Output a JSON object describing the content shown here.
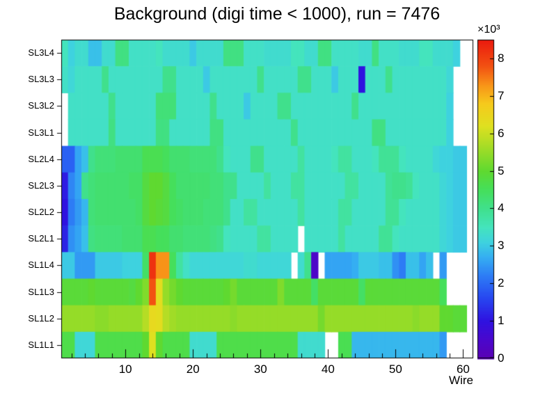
{
  "chart_data": {
    "type": "heatmap",
    "title": "Background (digi time < 1000), run = 7476",
    "xlabel": "Wire",
    "x_ticks": [
      10,
      20,
      30,
      40,
      50,
      60
    ],
    "x_minor_tick_step": 2,
    "n_wires": 61,
    "y_labels": [
      "SL3L4",
      "SL3L3",
      "SL3L2",
      "SL3L1",
      "SL2L4",
      "SL2L3",
      "SL2L2",
      "SL2L1",
      "SL1L4",
      "SL1L3",
      "SL1L2",
      "SL1L1"
    ],
    "colorbar": {
      "multiplier": "×10³",
      "ticks": [
        0,
        1,
        2,
        3,
        4,
        5,
        6,
        7,
        8
      ],
      "zmin": 0,
      "zmax": 8.5,
      "palette_stops": [
        [
          0.0,
          "#5a00b4"
        ],
        [
          0.5,
          "#4a07cd"
        ],
        [
          1.0,
          "#2f12e0"
        ],
        [
          1.6,
          "#2746f0"
        ],
        [
          2.2,
          "#2d7cf5"
        ],
        [
          2.7,
          "#35aef2"
        ],
        [
          3.1,
          "#3ed2df"
        ],
        [
          3.5,
          "#44e4bd"
        ],
        [
          4.0,
          "#40e08c"
        ],
        [
          4.5,
          "#45df5b"
        ],
        [
          5.0,
          "#5fd930"
        ],
        [
          5.6,
          "#a0dc27"
        ],
        [
          6.2,
          "#dfe020"
        ],
        [
          6.8,
          "#f6ca1c"
        ],
        [
          7.3,
          "#f89318"
        ],
        [
          7.8,
          "#f25112"
        ],
        [
          8.5,
          "#eb1a0e"
        ]
      ]
    },
    "rows": [
      {
        "label": "SL3L4",
        "runs": [
          [
            3.5,
            1
          ],
          [
            3.1,
            1
          ],
          [
            3.3,
            2
          ],
          [
            2.9,
            2
          ],
          [
            3.3,
            2
          ],
          [
            4.1,
            2
          ],
          [
            3.4,
            4
          ],
          [
            3.5,
            1
          ],
          [
            3.3,
            4
          ],
          [
            3.0,
            1
          ],
          [
            3.3,
            4
          ],
          [
            4.1,
            3
          ],
          [
            3.4,
            3
          ],
          [
            3.3,
            4
          ],
          [
            3.5,
            2
          ],
          [
            3.3,
            2
          ],
          [
            4.1,
            2
          ],
          [
            3.4,
            4
          ],
          [
            3.3,
            2
          ],
          [
            4.1,
            1
          ],
          [
            3.4,
            3
          ],
          [
            3.3,
            3
          ],
          [
            3.5,
            2
          ],
          [
            3.3,
            3
          ],
          [
            3.1,
            1
          ],
          [
            null,
            2
          ]
        ]
      },
      {
        "label": "SL3L3",
        "runs": [
          [
            3.4,
            1
          ],
          [
            3.2,
            1
          ],
          [
            3.4,
            4
          ],
          [
            4.0,
            1
          ],
          [
            3.4,
            8
          ],
          [
            4.0,
            2
          ],
          [
            3.4,
            4
          ],
          [
            3.0,
            1
          ],
          [
            3.4,
            7
          ],
          [
            4.0,
            1
          ],
          [
            3.4,
            5
          ],
          [
            4.0,
            2
          ],
          [
            3.4,
            3
          ],
          [
            3.0,
            1
          ],
          [
            3.4,
            3
          ],
          [
            1.0,
            1
          ],
          [
            3.4,
            3
          ],
          [
            4.0,
            1
          ],
          [
            3.4,
            8
          ],
          [
            3.2,
            1
          ],
          [
            null,
            3
          ]
        ]
      },
      {
        "label": "SL3L2",
        "runs": [
          [
            null,
            1
          ],
          [
            3.4,
            6
          ],
          [
            4.0,
            1
          ],
          [
            3.4,
            6
          ],
          [
            4.2,
            3
          ],
          [
            3.4,
            5
          ],
          [
            4.0,
            1
          ],
          [
            3.4,
            4
          ],
          [
            3.0,
            1
          ],
          [
            3.4,
            4
          ],
          [
            4.0,
            2
          ],
          [
            3.4,
            9
          ],
          [
            4.0,
            1
          ],
          [
            3.4,
            13
          ],
          [
            3.1,
            1
          ],
          [
            null,
            3
          ]
        ]
      },
      {
        "label": "SL3L1",
        "runs": [
          [
            null,
            1
          ],
          [
            3.4,
            6
          ],
          [
            4.1,
            1
          ],
          [
            3.4,
            6
          ],
          [
            4.1,
            2
          ],
          [
            3.4,
            6
          ],
          [
            4.1,
            2
          ],
          [
            3.4,
            10
          ],
          [
            4.0,
            1
          ],
          [
            3.4,
            11
          ],
          [
            4.1,
            2
          ],
          [
            3.4,
            9
          ],
          [
            3.1,
            1
          ],
          [
            null,
            3
          ]
        ]
      },
      {
        "label": "SL2L4",
        "runs": [
          [
            1.9,
            2
          ],
          [
            2.6,
            1
          ],
          [
            2.9,
            1
          ],
          [
            4.0,
            1
          ],
          [
            4.2,
            3
          ],
          [
            4.3,
            4
          ],
          [
            4.6,
            3
          ],
          [
            4.5,
            1
          ],
          [
            4.3,
            3
          ],
          [
            4.2,
            4
          ],
          [
            4.0,
            1
          ],
          [
            3.5,
            1
          ],
          [
            3.4,
            3
          ],
          [
            4.0,
            2
          ],
          [
            3.4,
            5
          ],
          [
            3.8,
            1
          ],
          [
            3.4,
            4
          ],
          [
            3.5,
            1
          ],
          [
            3.8,
            2
          ],
          [
            3.4,
            3
          ],
          [
            3.5,
            1
          ],
          [
            3.9,
            3
          ],
          [
            3.5,
            1
          ],
          [
            3.4,
            4
          ],
          [
            3.2,
            1
          ],
          [
            3.1,
            2
          ],
          [
            3.0,
            2
          ],
          [
            null,
            1
          ]
        ]
      },
      {
        "label": "SL2L3",
        "runs": [
          [
            1.1,
            1
          ],
          [
            2.3,
            1
          ],
          [
            2.6,
            1
          ],
          [
            4.0,
            1
          ],
          [
            4.2,
            1
          ],
          [
            4.3,
            5
          ],
          [
            4.4,
            2
          ],
          [
            4.8,
            1
          ],
          [
            5.0,
            2
          ],
          [
            4.8,
            1
          ],
          [
            4.5,
            1
          ],
          [
            4.3,
            5
          ],
          [
            4.2,
            2
          ],
          [
            4.0,
            2
          ],
          [
            3.4,
            4
          ],
          [
            3.8,
            1
          ],
          [
            3.4,
            3
          ],
          [
            3.8,
            2
          ],
          [
            3.4,
            6
          ],
          [
            3.8,
            2
          ],
          [
            3.4,
            4
          ],
          [
            3.9,
            1
          ],
          [
            4.0,
            2
          ],
          [
            3.9,
            1
          ],
          [
            3.5,
            1
          ],
          [
            3.4,
            3
          ],
          [
            3.2,
            1
          ],
          [
            3.1,
            1
          ],
          [
            3.0,
            2
          ],
          [
            null,
            1
          ]
        ]
      },
      {
        "label": "SL2L2",
        "runs": [
          [
            1.0,
            1
          ],
          [
            2.2,
            1
          ],
          [
            2.5,
            1
          ],
          [
            2.8,
            1
          ],
          [
            4.2,
            1
          ],
          [
            4.3,
            6
          ],
          [
            4.4,
            1
          ],
          [
            4.8,
            1
          ],
          [
            5.0,
            1
          ],
          [
            4.9,
            1
          ],
          [
            4.8,
            1
          ],
          [
            4.5,
            1
          ],
          [
            4.4,
            1
          ],
          [
            4.3,
            3
          ],
          [
            4.2,
            3
          ],
          [
            4.0,
            1
          ],
          [
            3.4,
            2
          ],
          [
            3.8,
            2
          ],
          [
            3.4,
            6
          ],
          [
            3.8,
            1
          ],
          [
            3.4,
            5
          ],
          [
            3.8,
            2
          ],
          [
            3.4,
            5
          ],
          [
            3.9,
            2
          ],
          [
            3.5,
            1
          ],
          [
            3.4,
            5
          ],
          [
            3.2,
            1
          ],
          [
            3.1,
            1
          ],
          [
            3.0,
            2
          ],
          [
            null,
            1
          ]
        ]
      },
      {
        "label": "SL2L1",
        "runs": [
          [
            1.2,
            1
          ],
          [
            2.4,
            1
          ],
          [
            2.6,
            1
          ],
          [
            2.9,
            1
          ],
          [
            4.1,
            1
          ],
          [
            4.2,
            4
          ],
          [
            4.3,
            3
          ],
          [
            4.6,
            2
          ],
          [
            4.5,
            2
          ],
          [
            4.3,
            2
          ],
          [
            4.2,
            4
          ],
          [
            4.1,
            1
          ],
          [
            4.0,
            1
          ],
          [
            3.5,
            1
          ],
          [
            3.4,
            4
          ],
          [
            3.8,
            2
          ],
          [
            3.4,
            4
          ],
          [
            null,
            1
          ],
          [
            3.4,
            5
          ],
          [
            3.8,
            1
          ],
          [
            3.4,
            5
          ],
          [
            3.9,
            2
          ],
          [
            3.5,
            1
          ],
          [
            3.4,
            6
          ],
          [
            3.2,
            1
          ],
          [
            3.1,
            1
          ],
          [
            3.0,
            2
          ],
          [
            null,
            1
          ]
        ]
      },
      {
        "label": "SL1L4",
        "runs": [
          [
            3.0,
            2
          ],
          [
            2.5,
            3
          ],
          [
            3.0,
            4
          ],
          [
            3.1,
            3
          ],
          [
            4.4,
            1
          ],
          [
            8.2,
            1
          ],
          [
            7.3,
            2
          ],
          [
            4.5,
            1
          ],
          [
            3.8,
            1
          ],
          [
            3.4,
            1
          ],
          [
            3.2,
            8
          ],
          [
            3.3,
            2
          ],
          [
            3.2,
            5
          ],
          [
            null,
            1
          ],
          [
            3.3,
            1
          ],
          [
            4.0,
            1
          ],
          [
            0.4,
            1
          ],
          [
            null,
            1
          ],
          [
            2.6,
            4
          ],
          [
            2.7,
            1
          ],
          [
            3.0,
            3
          ],
          [
            2.9,
            2
          ],
          [
            2.4,
            1
          ],
          [
            2.2,
            1
          ],
          [
            2.9,
            2
          ],
          [
            2.6,
            1
          ],
          [
            2.9,
            1
          ],
          [
            null,
            1
          ],
          [
            2.5,
            1
          ],
          [
            null,
            4
          ]
        ]
      },
      {
        "label": "SL1L3",
        "runs": [
          [
            4.9,
            4
          ],
          [
            5.0,
            1
          ],
          [
            4.9,
            5
          ],
          [
            4.8,
            1
          ],
          [
            5.0,
            1
          ],
          [
            5.3,
            1
          ],
          [
            7.8,
            1
          ],
          [
            6.3,
            1
          ],
          [
            5.5,
            1
          ],
          [
            5.2,
            1
          ],
          [
            5.0,
            1
          ],
          [
            4.9,
            6
          ],
          [
            5.0,
            1
          ],
          [
            5.2,
            1
          ],
          [
            4.9,
            6
          ],
          [
            5.3,
            1
          ],
          [
            4.9,
            4
          ],
          [
            4.4,
            1
          ],
          [
            4.9,
            6
          ],
          [
            4.4,
            1
          ],
          [
            4.9,
            11
          ],
          [
            4.5,
            1
          ],
          [
            null,
            4
          ]
        ]
      },
      {
        "label": "SL1L2",
        "runs": [
          [
            5.5,
            5
          ],
          [
            5.4,
            2
          ],
          [
            5.5,
            5
          ],
          [
            5.8,
            1
          ],
          [
            6.4,
            1
          ],
          [
            6.3,
            1
          ],
          [
            5.8,
            1
          ],
          [
            5.6,
            1
          ],
          [
            5.5,
            8
          ],
          [
            5.4,
            1
          ],
          [
            5.5,
            12
          ],
          [
            5.2,
            1
          ],
          [
            5.5,
            13
          ],
          [
            5.4,
            1
          ],
          [
            5.5,
            3
          ],
          [
            5.0,
            2
          ],
          [
            4.9,
            2
          ],
          [
            null,
            1
          ]
        ]
      },
      {
        "label": "SL1L1",
        "runs": [
          [
            4.7,
            2
          ],
          [
            3.2,
            3
          ],
          [
            4.7,
            7
          ],
          [
            5.0,
            1
          ],
          [
            6.2,
            1
          ],
          [
            5.0,
            1
          ],
          [
            4.7,
            4
          ],
          [
            3.3,
            4
          ],
          [
            4.7,
            12
          ],
          [
            3.3,
            4
          ],
          [
            null,
            2
          ],
          [
            4.6,
            2
          ],
          [
            2.8,
            13
          ],
          [
            2.5,
            1
          ],
          [
            null,
            4
          ]
        ]
      }
    ]
  }
}
